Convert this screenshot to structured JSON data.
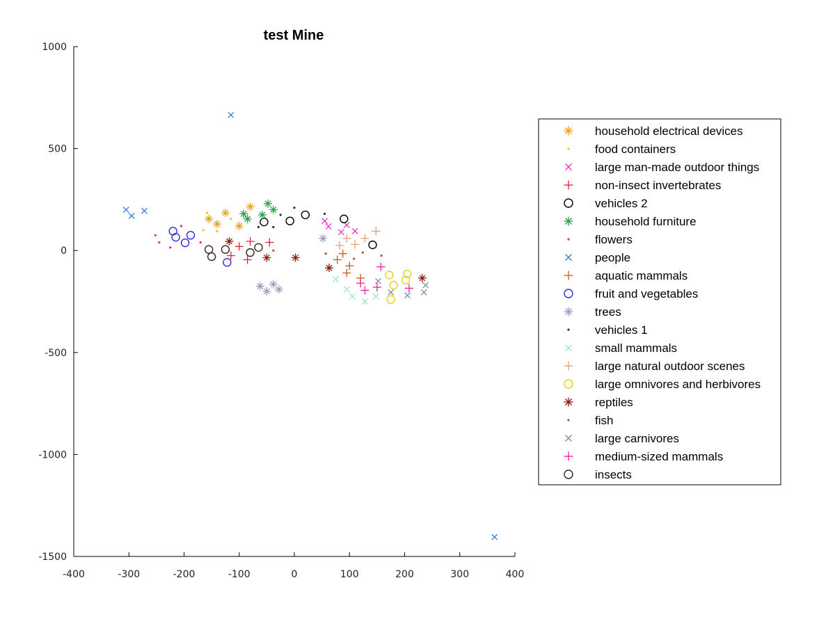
{
  "chart_data": {
    "type": "scatter",
    "title": "test Mine",
    "xlabel": "",
    "ylabel": "",
    "xlim": [
      -400,
      400
    ],
    "ylim": [
      -1500,
      1000
    ],
    "x_ticks": [
      -400,
      -300,
      -200,
      -100,
      0,
      100,
      200,
      300,
      400
    ],
    "y_ticks": [
      1000,
      500,
      0,
      -500,
      -1000,
      -1500
    ],
    "grid": false,
    "legend_position": "right",
    "series": [
      {
        "name": "household electrical devices",
        "marker": "asterisk",
        "color": "#E5A21A",
        "points": [
          [
            -155,
            155
          ],
          [
            -140,
            130
          ],
          [
            -125,
            185
          ],
          [
            -100,
            120
          ],
          [
            -80,
            215
          ]
        ]
      },
      {
        "name": "food containers",
        "marker": "dot",
        "color": "#F2C12E",
        "points": [
          [
            -158,
            185
          ],
          [
            -165,
            100
          ],
          [
            -125,
            190
          ],
          [
            -115,
            155
          ],
          [
            -140,
            95
          ]
        ]
      },
      {
        "name": "large man-made outdoor things",
        "marker": "x",
        "color": "#E531C9",
        "points": [
          [
            55,
            145
          ],
          [
            62,
            118
          ],
          [
            85,
            90
          ],
          [
            95,
            125
          ],
          [
            110,
            95
          ]
        ]
      },
      {
        "name": "non-insect invertebrates",
        "marker": "plus",
        "color": "#E0203C",
        "points": [
          [
            -115,
            -25
          ],
          [
            -100,
            20
          ],
          [
            -85,
            -45
          ],
          [
            -80,
            45
          ],
          [
            -45,
            40
          ]
        ]
      },
      {
        "name": "vehicles 2",
        "marker": "circle",
        "color": "#000000",
        "points": [
          [
            -55,
            140
          ],
          [
            -8,
            145
          ],
          [
            20,
            175
          ],
          [
            90,
            155
          ],
          [
            142,
            28
          ]
        ]
      },
      {
        "name": "household furniture",
        "marker": "asterisk",
        "color": "#2E9E4A",
        "points": [
          [
            -92,
            180
          ],
          [
            -85,
            155
          ],
          [
            -58,
            175
          ],
          [
            -48,
            230
          ],
          [
            -38,
            200
          ]
        ]
      },
      {
        "name": "flowers",
        "marker": "dot",
        "color": "#F0209A",
        "points": [
          [
            -252,
            75
          ],
          [
            -245,
            40
          ],
          [
            -225,
            15
          ],
          [
            -205,
            120
          ],
          [
            -170,
            40
          ]
        ]
      },
      {
        "name": "people",
        "marker": "x",
        "color": "#3B78DE",
        "points": [
          [
            -305,
            200
          ],
          [
            -295,
            170
          ],
          [
            -272,
            195
          ],
          [
            -115,
            665
          ],
          [
            363,
            -1405
          ]
        ]
      },
      {
        "name": "aquatic mammals",
        "marker": "plus",
        "color": "#C85A14",
        "points": [
          [
            78,
            -45
          ],
          [
            88,
            -15
          ],
          [
            95,
            -110
          ],
          [
            100,
            -75
          ],
          [
            120,
            -135
          ]
        ]
      },
      {
        "name": "fruit and vegetables",
        "marker": "circle",
        "color": "#2C2CE0",
        "points": [
          [
            -220,
            95
          ],
          [
            -215,
            65
          ],
          [
            -198,
            38
          ],
          [
            -188,
            75
          ],
          [
            -122,
            -58
          ]
        ]
      },
      {
        "name": "trees",
        "marker": "asterisk",
        "color": "#A09AB8",
        "points": [
          [
            -62,
            -175
          ],
          [
            -50,
            -200
          ],
          [
            -38,
            -165
          ],
          [
            -28,
            -190
          ],
          [
            52,
            60
          ]
        ]
      },
      {
        "name": "vehicles 1",
        "marker": "dot",
        "color": "#10335C",
        "points": [
          [
            -65,
            115
          ],
          [
            -38,
            115
          ],
          [
            -25,
            175
          ],
          [
            0,
            210
          ],
          [
            55,
            180
          ]
        ]
      },
      {
        "name": "small mammals",
        "marker": "x",
        "color": "#9BE8C2",
        "points": [
          [
            75,
            -140
          ],
          [
            95,
            -190
          ],
          [
            105,
            -225
          ],
          [
            128,
            -250
          ],
          [
            148,
            -225
          ]
        ]
      },
      {
        "name": "large natural outdoor scenes",
        "marker": "plus",
        "color": "#E09F78",
        "points": [
          [
            82,
            25
          ],
          [
            95,
            60
          ],
          [
            110,
            30
          ],
          [
            128,
            60
          ],
          [
            148,
            95
          ]
        ]
      },
      {
        "name": "large omnivores and herbivores",
        "marker": "circle",
        "color": "#E8D21A",
        "points": [
          [
            172,
            -120
          ],
          [
            175,
            -240
          ],
          [
            180,
            -170
          ],
          [
            202,
            -145
          ],
          [
            205,
            -115
          ]
        ]
      },
      {
        "name": "reptiles",
        "marker": "asterisk",
        "color": "#8C1C0A",
        "points": [
          [
            -118,
            45
          ],
          [
            -50,
            -35
          ],
          [
            2,
            -35
          ],
          [
            63,
            -85
          ],
          [
            232,
            -135
          ]
        ]
      },
      {
        "name": "fish",
        "marker": "dot",
        "color": "#B8501E",
        "points": [
          [
            -38,
            0
          ],
          [
            57,
            -15
          ],
          [
            108,
            -40
          ],
          [
            124,
            -10
          ],
          [
            158,
            -25
          ]
        ]
      },
      {
        "name": "large carnivores",
        "marker": "x",
        "color": "#7D8C98",
        "points": [
          [
            152,
            -150
          ],
          [
            175,
            -205
          ],
          [
            205,
            -220
          ],
          [
            235,
            -205
          ],
          [
            238,
            -170
          ]
        ]
      },
      {
        "name": "medium-sized mammals",
        "marker": "plus",
        "color": "#F0189C",
        "points": [
          [
            120,
            -160
          ],
          [
            128,
            -195
          ],
          [
            150,
            -180
          ],
          [
            157,
            -80
          ],
          [
            208,
            -185
          ]
        ]
      },
      {
        "name": "insects",
        "marker": "circle",
        "color": "#3A2020",
        "points": [
          [
            -155,
            5
          ],
          [
            -150,
            -30
          ],
          [
            -125,
            5
          ],
          [
            -80,
            -10
          ],
          [
            -65,
            15
          ]
        ]
      }
    ]
  }
}
